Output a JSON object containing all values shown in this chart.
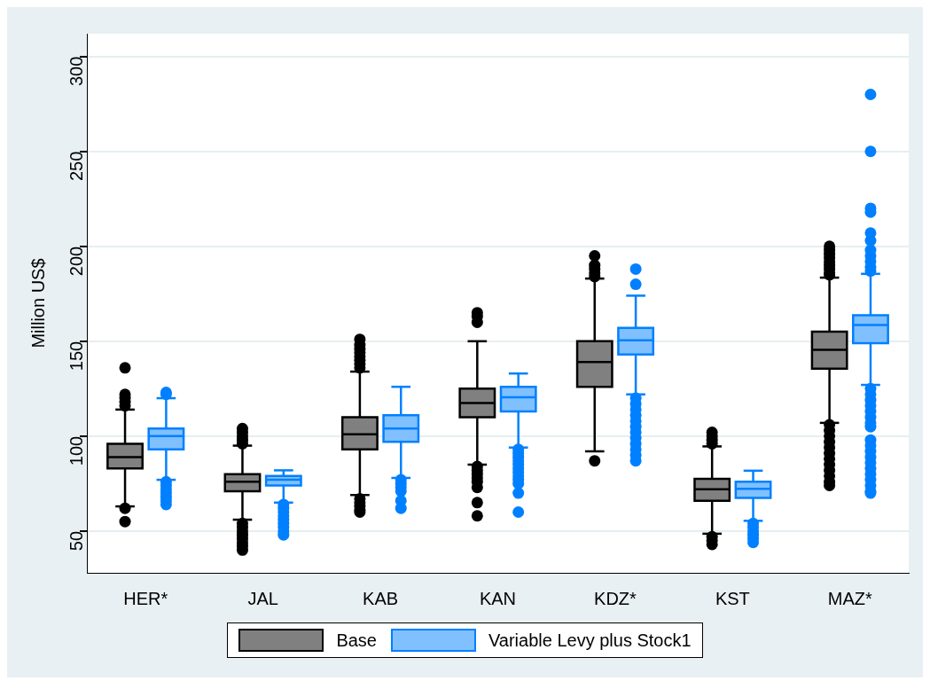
{
  "chart_data": {
    "type": "box",
    "ylabel": "Million US$",
    "categories": [
      "HER*",
      "JAL",
      "KAB",
      "KAN",
      "KDZ*",
      "KST",
      "MAZ*"
    ],
    "ylim": [
      28,
      312
    ],
    "yticks": [
      50,
      100,
      150,
      200,
      250,
      300
    ],
    "grid": "y",
    "legend": "bottom",
    "series": [
      {
        "name": "Base",
        "color": "#000000",
        "boxes": [
          {
            "low": 63,
            "q1": 83,
            "median": 89,
            "q3": 96,
            "high": 114,
            "outliers": [
              136,
              122,
              120,
              118,
              116,
              62,
              55
            ]
          },
          {
            "low": 56,
            "q1": 71,
            "median": 76,
            "q3": 80,
            "high": 95,
            "outliers": [
              104,
              102,
              100,
              98,
              96,
              54,
              52,
              50,
              48,
              46,
              44,
              42,
              40
            ]
          },
          {
            "low": 69,
            "q1": 93,
            "median": 101,
            "q3": 110,
            "high": 134,
            "outliers": [
              151,
              148,
              146,
              144,
              142,
              140,
              138,
              136,
              67,
              65,
              63,
              61,
              60
            ]
          },
          {
            "low": 85,
            "q1": 110,
            "median": 117.5,
            "q3": 125,
            "high": 150,
            "outliers": [
              165,
              163,
              160,
              84,
              82,
              80,
              78,
              76,
              73,
              65,
              58
            ]
          },
          {
            "low": 92,
            "q1": 126,
            "median": 139,
            "q3": 150,
            "high": 183,
            "outliers": [
              195,
              190,
              188,
              186,
              184,
              87
            ]
          },
          {
            "low": 48.6,
            "q1": 66,
            "median": 72,
            "q3": 77.5,
            "high": 94.6,
            "outliers": [
              102,
              100,
              98,
              96,
              47,
              45,
              43
            ]
          },
          {
            "low": 107,
            "q1": 135.5,
            "median": 145.5,
            "q3": 155,
            "high": 183.5,
            "outliers": [
              200,
              198,
              196,
              194,
              192,
              190,
              188,
              186,
              185,
              106,
              103,
              100,
              97,
              94,
              91,
              88,
              85,
              82,
              79,
              76,
              74
            ]
          }
        ]
      },
      {
        "name": "Variable Levy plus Stock1",
        "color": "#0080ff",
        "boxes": [
          {
            "low": 77,
            "q1": 93,
            "median": 100,
            "q3": 104,
            "high": 120,
            "outliers": [
              123,
              122,
              76,
              74,
              72,
              70,
              68,
              66,
              64
            ]
          },
          {
            "low": 65,
            "q1": 74,
            "median": 77,
            "q3": 79,
            "high": 82,
            "outliers": [
              64,
              62,
              60,
              58,
              56,
              54,
              52,
              50,
              48
            ]
          },
          {
            "low": 78,
            "q1": 97,
            "median": 104,
            "q3": 111,
            "high": 126,
            "outliers": [
              77,
              75,
              73,
              71,
              66,
              62
            ]
          },
          {
            "low": 94,
            "q1": 113,
            "median": 120.5,
            "q3": 126,
            "high": 133,
            "outliers": [
              93,
              91,
              89,
              87,
              85,
              83,
              81,
              79,
              77,
              75,
              70,
              60
            ]
          },
          {
            "low": 122,
            "q1": 143,
            "median": 150.5,
            "q3": 157,
            "high": 174,
            "outliers": [
              188,
              180,
              120,
              117,
              114,
              111,
              108,
              105,
              102,
              99,
              96,
              93,
              90,
              87
            ]
          },
          {
            "low": 55.4,
            "q1": 67.5,
            "median": 72.3,
            "q3": 76,
            "high": 81.8,
            "outliers": [
              54,
              52,
              50,
              48,
              46,
              44
            ]
          },
          {
            "low": 127,
            "q1": 149,
            "median": 158.5,
            "q3": 163.7,
            "high": 185.5,
            "outliers": [
              280,
              250,
              220,
              218,
              207,
              203,
              198,
              195,
              192,
              189,
              187,
              125,
              122,
              119,
              116,
              113,
              110,
              107,
              105,
              98,
              95,
              92,
              89,
              86,
              83,
              80,
              77,
              74,
              71,
              70
            ]
          }
        ]
      }
    ]
  }
}
